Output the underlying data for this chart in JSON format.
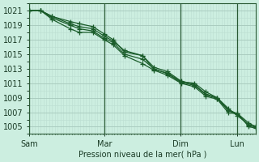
{
  "bg_color": "#cceee0",
  "line_color": "#1a5c2a",
  "grid_major_color": "#aaccc0",
  "grid_minor_color": "#bbddd0",
  "ylabel": "Pression niveau de la mer( hPa )",
  "ylim": [
    1004.0,
    1022.0
  ],
  "yticks": [
    1005,
    1007,
    1009,
    1011,
    1013,
    1015,
    1017,
    1019,
    1021
  ],
  "xtick_labels": [
    "Sam",
    "Mar",
    "Dim",
    "Lun"
  ],
  "xtick_positions": [
    0.0,
    0.333,
    0.667,
    0.917
  ],
  "xmax": 1.0,
  "lines": [
    {
      "x": [
        0.0,
        0.05,
        0.1,
        0.18,
        0.22,
        0.28,
        0.33,
        0.37,
        0.42,
        0.5,
        0.55,
        0.61,
        0.67,
        0.73,
        0.78,
        0.83,
        0.88,
        0.92,
        0.97,
        1.0
      ],
      "y": [
        1021,
        1021,
        1020.2,
        1019.2,
        1018.8,
        1018.5,
        1017.5,
        1016.8,
        1015.5,
        1014.8,
        1013.2,
        1012.6,
        1011.3,
        1010.8,
        1009.5,
        1009.0,
        1007.3,
        1006.8,
        1005.5,
        1005.0
      ]
    },
    {
      "x": [
        0.0,
        0.05,
        0.1,
        0.18,
        0.22,
        0.28,
        0.33,
        0.37,
        0.42,
        0.5,
        0.55,
        0.61,
        0.67,
        0.73,
        0.78,
        0.83,
        0.88,
        0.92,
        0.97,
        1.0
      ],
      "y": [
        1021,
        1021,
        1020.2,
        1019.5,
        1019.2,
        1018.8,
        1017.8,
        1017.0,
        1015.3,
        1014.8,
        1012.9,
        1012.4,
        1011.2,
        1011.0,
        1009.8,
        1009.0,
        1007.5,
        1006.5,
        1005.3,
        1005.1
      ]
    },
    {
      "x": [
        0.0,
        0.05,
        0.1,
        0.18,
        0.22,
        0.28,
        0.33,
        0.37,
        0.42,
        0.5,
        0.55,
        0.61,
        0.67,
        0.73,
        0.78,
        0.83,
        0.88,
        0.92,
        0.97,
        1.0
      ],
      "y": [
        1021,
        1021,
        1019.8,
        1018.5,
        1018.0,
        1018.0,
        1017.0,
        1016.3,
        1014.8,
        1013.7,
        1012.8,
        1012.1,
        1011.0,
        1010.5,
        1009.2,
        1008.8,
        1006.9,
        1006.8,
        1005.0,
        1004.8
      ]
    },
    {
      "x": [
        0.0,
        0.05,
        0.1,
        0.18,
        0.22,
        0.28,
        0.33,
        0.37,
        0.42,
        0.5,
        0.55,
        0.61,
        0.67,
        0.73,
        0.78,
        0.83,
        0.88,
        0.92,
        0.97,
        1.0
      ],
      "y": [
        1021,
        1021,
        1020.0,
        1019.0,
        1018.5,
        1018.2,
        1017.2,
        1016.6,
        1015.0,
        1014.3,
        1013.0,
        1012.3,
        1011.1,
        1010.7,
        1009.4,
        1008.9,
        1007.2,
        1006.7,
        1005.2,
        1004.9
      ]
    }
  ],
  "vlines": [
    0.0,
    0.333,
    0.667,
    0.917
  ],
  "figsize": [
    3.2,
    2.0
  ],
  "dpi": 100
}
